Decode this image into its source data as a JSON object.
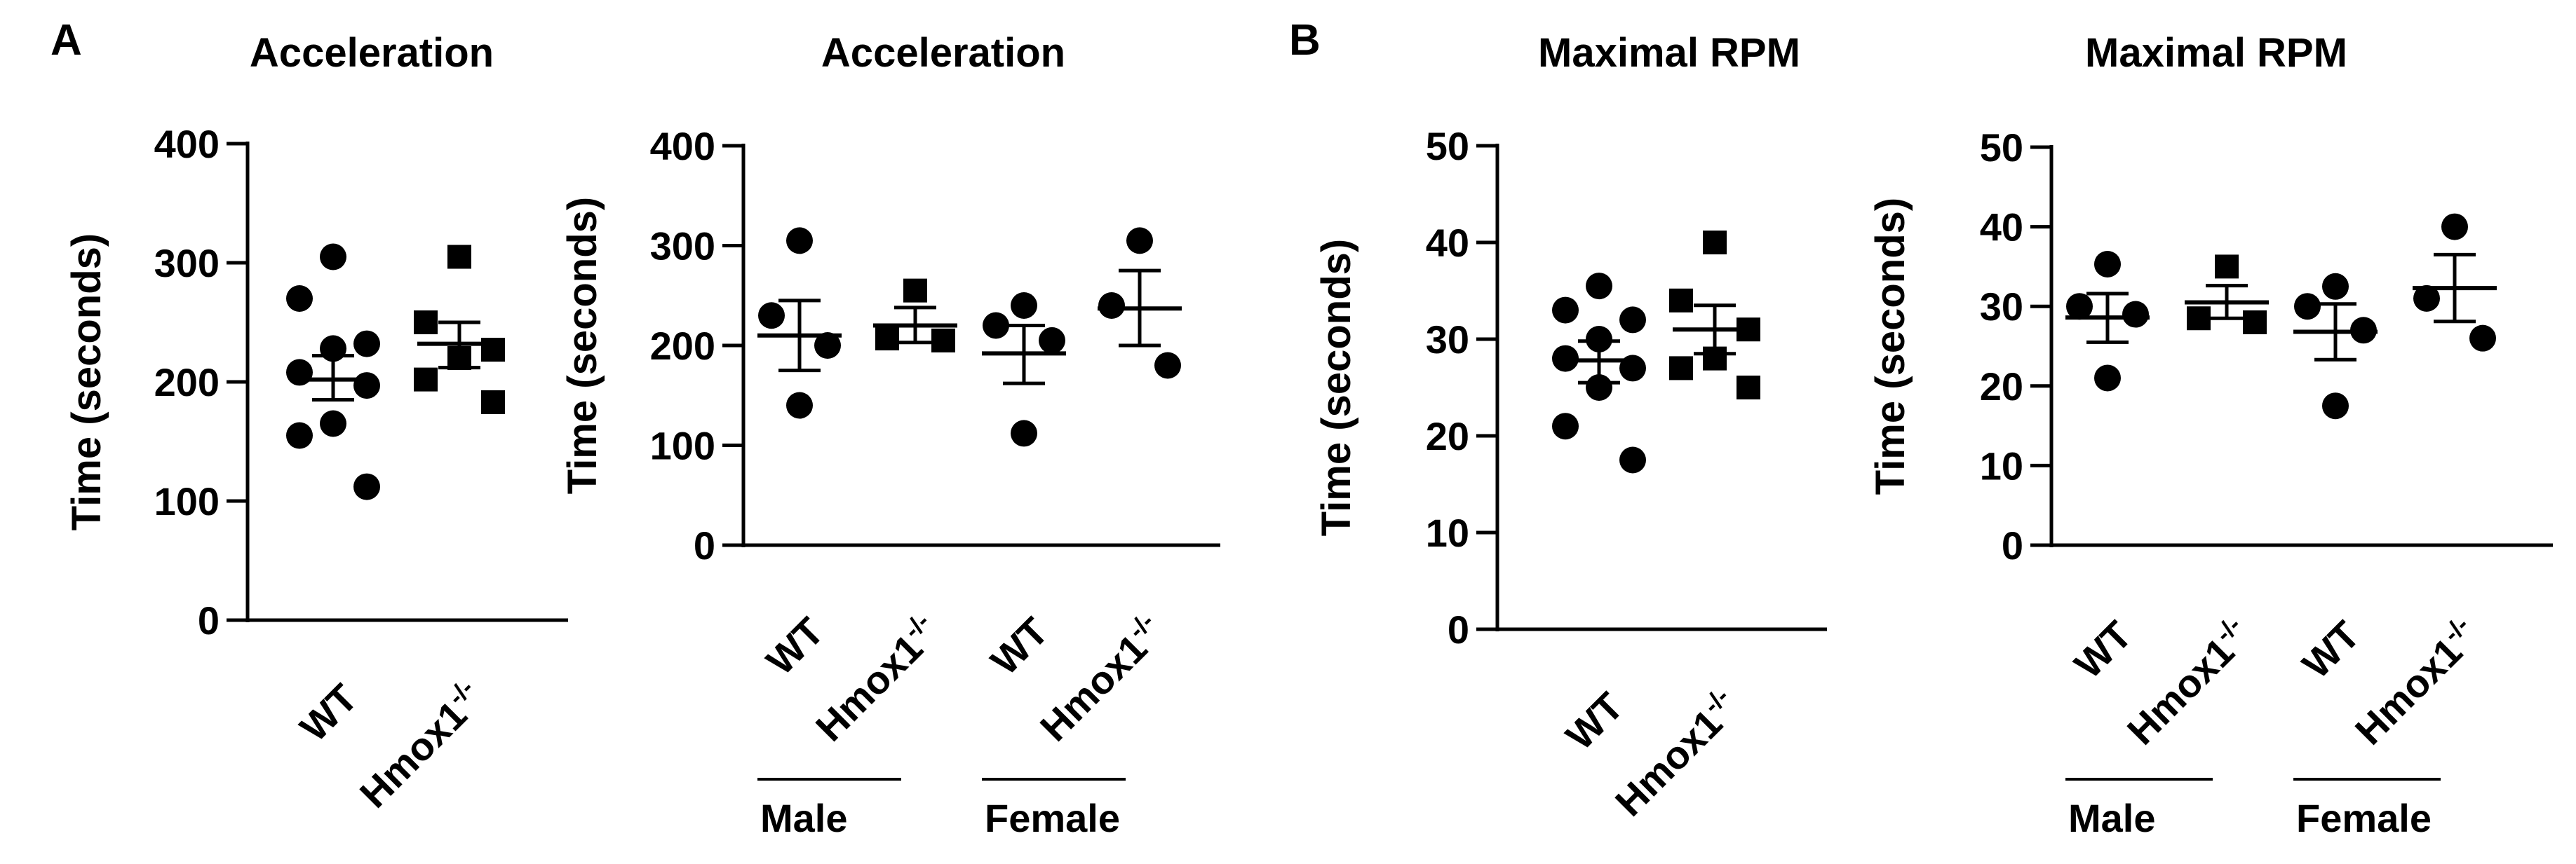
{
  "panel_letters": [
    "A",
    "B"
  ],
  "chart_data": [
    {
      "type": "scatter",
      "title": "Acceleration",
      "ylabel": "Time (seconds)",
      "ylim": [
        0,
        400
      ],
      "yticks": [
        0,
        100,
        200,
        300,
        400
      ],
      "categories": [
        "WT",
        "Hmox1-/-"
      ],
      "groups": [],
      "series": [
        {
          "category": "WT",
          "marker": "circle",
          "values": [
            305,
            270,
            232,
            228,
            208,
            197,
            165,
            155,
            112
          ],
          "mean": 202,
          "sem": [
            185,
            222
          ]
        },
        {
          "category": "Hmox1-/-",
          "marker": "square",
          "values": [
            305,
            250,
            227,
            220,
            202,
            183
          ],
          "mean": 232,
          "sem": [
            212,
            250
          ]
        }
      ]
    },
    {
      "type": "scatter",
      "title": "Acceleration",
      "ylabel": "Time (seconds)",
      "ylim": [
        0,
        400
      ],
      "yticks": [
        0,
        100,
        200,
        300,
        400
      ],
      "categories": [
        "WT",
        "Hmox1-/-",
        "WT",
        "Hmox1-/-"
      ],
      "groups": [
        {
          "label": "Male",
          "categories": [
            0,
            1
          ]
        },
        {
          "label": "Female",
          "categories": [
            2,
            3
          ]
        }
      ],
      "series": [
        {
          "category": "WT",
          "group": "Male",
          "marker": "circle",
          "values": [
            305,
            230,
            200,
            140
          ],
          "mean": 210,
          "sem": [
            175,
            245
          ]
        },
        {
          "category": "Hmox1-/-",
          "group": "Male",
          "marker": "square",
          "values": [
            255,
            207,
            205
          ],
          "mean": 220,
          "sem": [
            203,
            238
          ]
        },
        {
          "category": "WT",
          "group": "Female",
          "marker": "circle",
          "values": [
            240,
            220,
            205,
            112
          ],
          "mean": 192,
          "sem": [
            162,
            220
          ]
        },
        {
          "category": "Hmox1-/-",
          "group": "Female",
          "marker": "circle",
          "values": [
            305,
            240,
            180
          ],
          "mean": 237,
          "sem": [
            200,
            275
          ]
        }
      ]
    },
    {
      "type": "scatter",
      "title": "Maximal RPM",
      "ylabel": "Time (seconds)",
      "ylim": [
        0,
        50
      ],
      "yticks": [
        0,
        10,
        20,
        30,
        40,
        50
      ],
      "categories": [
        "WT",
        "Hmox1-/-"
      ],
      "groups": [],
      "series": [
        {
          "category": "WT",
          "marker": "circle",
          "values": [
            35.5,
            33,
            32,
            30,
            28,
            27,
            25,
            21,
            17.5
          ],
          "mean": 27.8,
          "sem": [
            25.5,
            29.8
          ]
        },
        {
          "category": "Hmox1-/-",
          "marker": "square",
          "values": [
            40,
            34,
            31,
            28,
            27,
            25
          ],
          "mean": 31,
          "sem": [
            28.5,
            33.5
          ]
        }
      ]
    },
    {
      "type": "scatter",
      "title": "Maximal RPM",
      "ylabel": "Time (seconds)",
      "ylim": [
        0,
        50
      ],
      "yticks": [
        0,
        10,
        20,
        30,
        40,
        50
      ],
      "categories": [
        "WT",
        "Hmox1-/-",
        "WT",
        "Hmox1-/-"
      ],
      "groups": [
        {
          "label": "Male",
          "categories": [
            0,
            1
          ]
        },
        {
          "label": "Female",
          "categories": [
            2,
            3
          ]
        }
      ],
      "series": [
        {
          "category": "WT",
          "group": "Male",
          "marker": "circle",
          "values": [
            35.3,
            30,
            29,
            21
          ],
          "mean": 28.6,
          "sem": [
            25.5,
            31.6
          ]
        },
        {
          "category": "Hmox1-/-",
          "group": "Male",
          "marker": "square",
          "values": [
            35,
            28.5,
            28
          ],
          "mean": 30.5,
          "sem": [
            28.5,
            32.6
          ]
        },
        {
          "category": "WT",
          "group": "Female",
          "marker": "circle",
          "values": [
            32.5,
            30,
            27,
            17.5
          ],
          "mean": 26.8,
          "sem": [
            23.3,
            30.3
          ]
        },
        {
          "category": "Hmox1-/-",
          "group": "Female",
          "marker": "circle",
          "values": [
            40,
            31,
            26
          ],
          "mean": 32.3,
          "sem": [
            28.1,
            36.5
          ]
        }
      ]
    }
  ]
}
